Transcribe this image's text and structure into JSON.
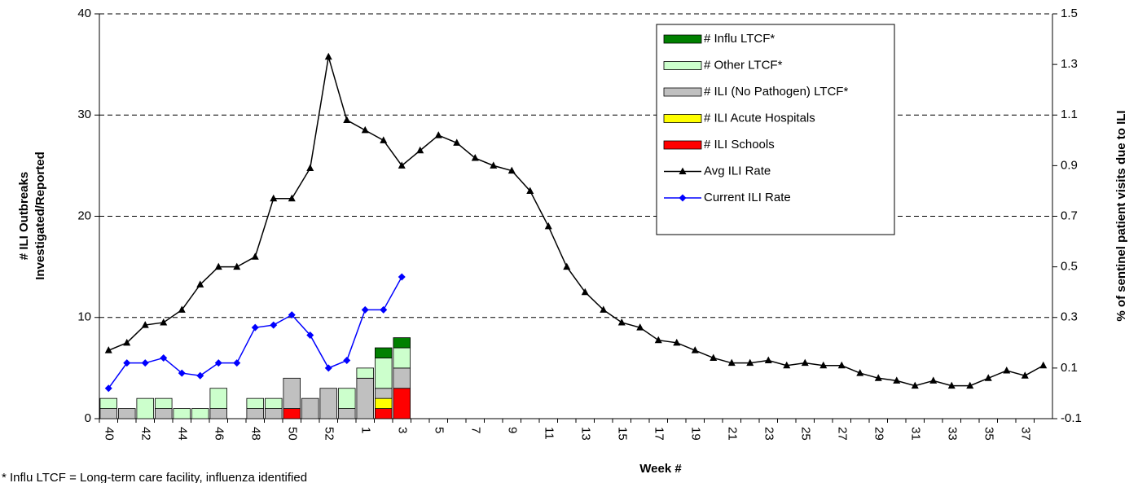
{
  "chart_data": {
    "type": "bar",
    "y_label": [
      "# ILI Outbreaks",
      "Investigated/Reported"
    ],
    "y2_label": "% of sentinel patient visits due to ILI",
    "x_label": "Week #",
    "footnote": "* Influ LTCF = Long-term care facility, influenza identified",
    "categories": [
      "40",
      null,
      "42",
      null,
      "44",
      null,
      "46",
      null,
      "48",
      null,
      "50",
      null,
      "52",
      null,
      "1",
      null,
      "3",
      null,
      "5",
      null,
      "7",
      null,
      "9",
      null,
      "11",
      null,
      "13",
      null,
      "15",
      null,
      "17",
      null,
      "19",
      null,
      "21",
      null,
      "23",
      null,
      "25",
      null,
      "27",
      null,
      "29",
      null,
      "31",
      null,
      "33",
      null,
      "35",
      null,
      "37",
      null
    ],
    "ylim": [
      0,
      40
    ],
    "yticks": [
      0,
      10,
      20,
      30,
      40
    ],
    "y2lim": [
      -0.1,
      1.5
    ],
    "y2ticks": [
      -0.1,
      0.1,
      0.3,
      0.5,
      0.7,
      0.9,
      1.1,
      1.3,
      1.5
    ],
    "grid": true,
    "legend": "upper right",
    "series": [
      {
        "name": "# Influ LTCF*",
        "type": "bar",
        "color": "#008000",
        "values": [
          0,
          0,
          0,
          0,
          0,
          0,
          0,
          0,
          0,
          0,
          0,
          0,
          0,
          0,
          0,
          1,
          1,
          null,
          null,
          null,
          null,
          null,
          null,
          null,
          null,
          null,
          null,
          null,
          null,
          null,
          null,
          null,
          null,
          null,
          null,
          null,
          null,
          null,
          null,
          null,
          null,
          null,
          null,
          null,
          null,
          null,
          null,
          null,
          null,
          null,
          null,
          null
        ]
      },
      {
        "name": "# Other LTCF*",
        "type": "bar",
        "color": "#ccffcc",
        "values": [
          1,
          0,
          2,
          1,
          1,
          1,
          2,
          0,
          1,
          1,
          0,
          0,
          0,
          2,
          1,
          3,
          2,
          null,
          null,
          null,
          null,
          null,
          null,
          null,
          null,
          null,
          null,
          null,
          null,
          null,
          null,
          null,
          null,
          null,
          null,
          null,
          null,
          null,
          null,
          null,
          null,
          null,
          null,
          null,
          null,
          null,
          null,
          null,
          null,
          null,
          null,
          null
        ]
      },
      {
        "name": "# ILI (No Pathogen) LTCF*",
        "type": "bar",
        "color": "#c0c0c0",
        "values": [
          1,
          1,
          0,
          1,
          0,
          0,
          1,
          0,
          1,
          1,
          3,
          2,
          3,
          1,
          4,
          1,
          2,
          null,
          null,
          null,
          null,
          null,
          null,
          null,
          null,
          null,
          null,
          null,
          null,
          null,
          null,
          null,
          null,
          null,
          null,
          null,
          null,
          null,
          null,
          null,
          null,
          null,
          null,
          null,
          null,
          null,
          null,
          null,
          null,
          null,
          null,
          null
        ]
      },
      {
        "name": "# ILI Acute Hospitals",
        "type": "bar",
        "color": "#ffff00",
        "values": [
          0,
          0,
          0,
          0,
          0,
          0,
          0,
          0,
          0,
          0,
          0,
          0,
          0,
          0,
          0,
          1,
          0,
          null,
          null,
          null,
          null,
          null,
          null,
          null,
          null,
          null,
          null,
          null,
          null,
          null,
          null,
          null,
          null,
          null,
          null,
          null,
          null,
          null,
          null,
          null,
          null,
          null,
          null,
          null,
          null,
          null,
          null,
          null,
          null,
          null,
          null,
          null
        ]
      },
      {
        "name": "# ILI Schools",
        "type": "bar",
        "color": "#ff0000",
        "values": [
          0,
          0,
          0,
          0,
          0,
          0,
          0,
          0,
          0,
          0,
          1,
          0,
          0,
          0,
          0,
          1,
          3,
          null,
          null,
          null,
          null,
          null,
          null,
          null,
          null,
          null,
          null,
          null,
          null,
          null,
          null,
          null,
          null,
          null,
          null,
          null,
          null,
          null,
          null,
          null,
          null,
          null,
          null,
          null,
          null,
          null,
          null,
          null,
          null,
          null,
          null,
          null
        ]
      },
      {
        "name": "Avg ILI Rate",
        "type": "line",
        "axis": "y2",
        "color": "#000000",
        "marker": "triangle",
        "values": [
          0.17,
          0.2,
          0.27,
          0.28,
          0.33,
          0.43,
          0.5,
          0.5,
          0.54,
          0.77,
          0.77,
          0.89,
          1.33,
          1.08,
          1.04,
          1.0,
          0.9,
          0.96,
          1.02,
          0.99,
          0.93,
          0.9,
          0.88,
          0.8,
          0.66,
          0.5,
          0.4,
          0.33,
          0.28,
          0.26,
          0.21,
          0.2,
          0.17,
          0.14,
          0.12,
          0.12,
          0.13,
          0.11,
          0.12,
          0.11,
          0.11,
          0.08,
          0.06,
          0.05,
          0.03,
          0.05,
          0.03,
          0.03,
          0.06,
          0.09,
          0.07,
          0.11
        ]
      },
      {
        "name": "Current ILI Rate",
        "type": "line",
        "axis": "y2",
        "color": "#0000ff",
        "marker": "diamond",
        "values": [
          0.02,
          0.12,
          0.12,
          0.14,
          0.08,
          0.07,
          0.12,
          0.12,
          0.26,
          0.27,
          0.31,
          0.23,
          0.1,
          0.13,
          0.33,
          0.33,
          0.46,
          null,
          null,
          null,
          null,
          null,
          null,
          null,
          null,
          null,
          null,
          null,
          null,
          null,
          null,
          null,
          null,
          null,
          null,
          null,
          null,
          null,
          null,
          null,
          null,
          null,
          null,
          null,
          null,
          null,
          null,
          null,
          null,
          null,
          null,
          null
        ]
      }
    ]
  }
}
